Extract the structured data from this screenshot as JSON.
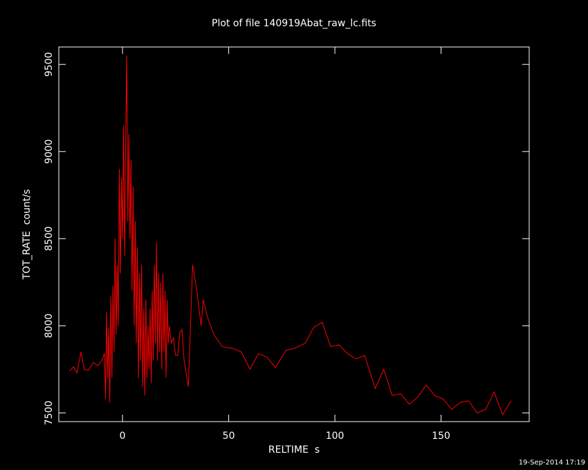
{
  "chart_data": {
    "type": "line",
    "title": "Plot of file 140919Abat_raw_lc.fits",
    "x_label": "RELTIME  s",
    "y_label": "TOT_RATE  count/s",
    "footer": "19-Sep-2014 17:19",
    "color": "#ff0000",
    "xlim": [
      -30,
      191.5
    ],
    "ylim": [
      7450,
      9600
    ],
    "xticks": [
      0,
      50,
      100,
      150
    ],
    "yticks": [
      7500,
      8000,
      8500,
      9000,
      9500
    ],
    "x": [
      -25,
      -23,
      -21.5,
      -19.5,
      -18,
      -16,
      -13.7,
      -11.7,
      -9.8,
      -8.5,
      -8,
      -7.5,
      -7,
      -6.5,
      -6,
      -5.5,
      -5,
      -4.5,
      -4,
      -3.5,
      -3,
      -2.5,
      -2,
      -1.5,
      -1,
      -0.5,
      0,
      0.5,
      1,
      1.5,
      2,
      2.5,
      3,
      3.5,
      4,
      4.5,
      5,
      5.5,
      6,
      6.5,
      7,
      7.5,
      8,
      8.5,
      9,
      9.5,
      10,
      10.5,
      11,
      11.5,
      12,
      12.5,
      13,
      13.5,
      14,
      14.5,
      15,
      15.5,
      16,
      16.5,
      17,
      17.5,
      18,
      18.5,
      19,
      19.5,
      20,
      20.5,
      21,
      21.5,
      22,
      23,
      24,
      25,
      26,
      27,
      28,
      29,
      31,
      33,
      35,
      37,
      38,
      40,
      43,
      47,
      52,
      56,
      60,
      64,
      68,
      72,
      77,
      81,
      86,
      90,
      94,
      98,
      102,
      106,
      110,
      114,
      119,
      123,
      127,
      131,
      135,
      139,
      143,
      147,
      151,
      155,
      159,
      163,
      167,
      171,
      175,
      179,
      183
    ],
    "values": [
      7740,
      7765,
      7730,
      7850,
      7750,
      7745,
      7790,
      7770,
      7800,
      7840,
      7580,
      8080,
      7700,
      7990,
      7560,
      8170,
      7700,
      8230,
      7850,
      8500,
      7950,
      8350,
      8000,
      8900,
      8300,
      8850,
      8500,
      9150,
      8400,
      9100,
      9550,
      8600,
      9100,
      8500,
      8950,
      8200,
      8800,
      8000,
      8600,
      7900,
      8450,
      7700,
      8300,
      7800,
      8350,
      7650,
      8100,
      7600,
      8150,
      7700,
      8000,
      7750,
      8100,
      7670,
      8200,
      7800,
      8350,
      7900,
      8480,
      7800,
      8300,
      7850,
      8250,
      7750,
      8300,
      7850,
      8200,
      7700,
      8150,
      7900,
      8000,
      7900,
      7930,
      7830,
      7830,
      7960,
      7980,
      7800,
      7650,
      8350,
      8200,
      8000,
      8150,
      8050,
      7950,
      7880,
      7870,
      7850,
      7750,
      7840,
      7820,
      7760,
      7860,
      7870,
      7900,
      7990,
      8020,
      7880,
      7890,
      7840,
      7810,
      7830,
      7640,
      7750,
      7600,
      7610,
      7550,
      7590,
      7660,
      7600,
      7580,
      7520,
      7560,
      7570,
      7500,
      7520,
      7620,
      7490,
      7570
    ]
  }
}
